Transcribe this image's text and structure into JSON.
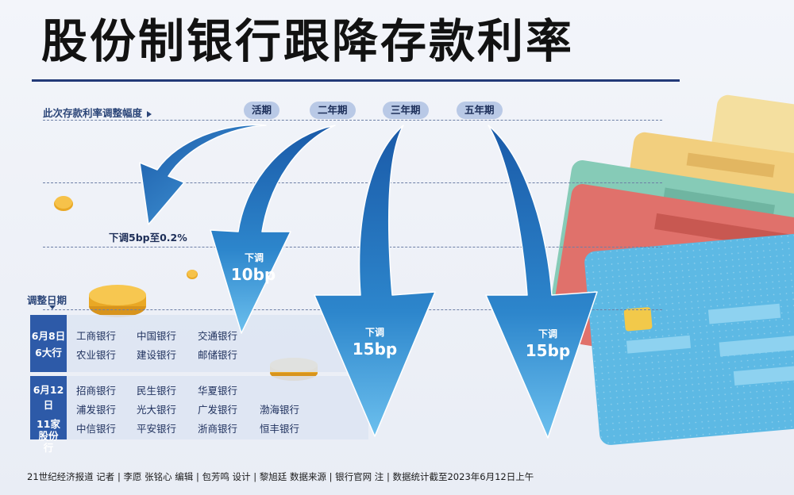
{
  "title": "股份制银行跟降存款利率",
  "subtitle": "此次存款利率调整幅度",
  "terms": [
    "活期",
    "二年期",
    "三年期",
    "五年期"
  ],
  "cuts": [
    {
      "prefix": "下调",
      "amount": "5bp至0.2%"
    },
    {
      "prefix": "下调",
      "amount": "10bp"
    },
    {
      "prefix": "下调",
      "amount": "15bp"
    },
    {
      "prefix": "下调",
      "amount": "15bp"
    }
  ],
  "date_header": "调整日期",
  "groups": [
    {
      "date": "6月8日",
      "scope": "6大行",
      "banks": [
        "工商银行",
        "中国银行",
        "交通银行",
        "农业银行",
        "建设银行",
        "邮储银行"
      ]
    },
    {
      "date": "6月12日",
      "scope": "11家股份行",
      "banks": [
        "招商银行",
        "民生银行",
        "华夏银行",
        "浦发银行",
        "光大银行",
        "广发银行",
        "渤海银行",
        "中信银行",
        "平安银行",
        "浙商银行",
        "恒丰银行"
      ]
    }
  ],
  "footer": "21世纪经济报道  记者 | 李愿 张铭心    编辑 | 包芳鸣    设计 | 黎旭廷    数据来源 | 银行官网    注 | 数据统计截至2023年6月12日上午",
  "colors": {
    "title_rule": "#233a78",
    "arrow_dark": "#1f5fae",
    "arrow_light": "#5fb4ea",
    "date_box": "#2d5aa8"
  }
}
